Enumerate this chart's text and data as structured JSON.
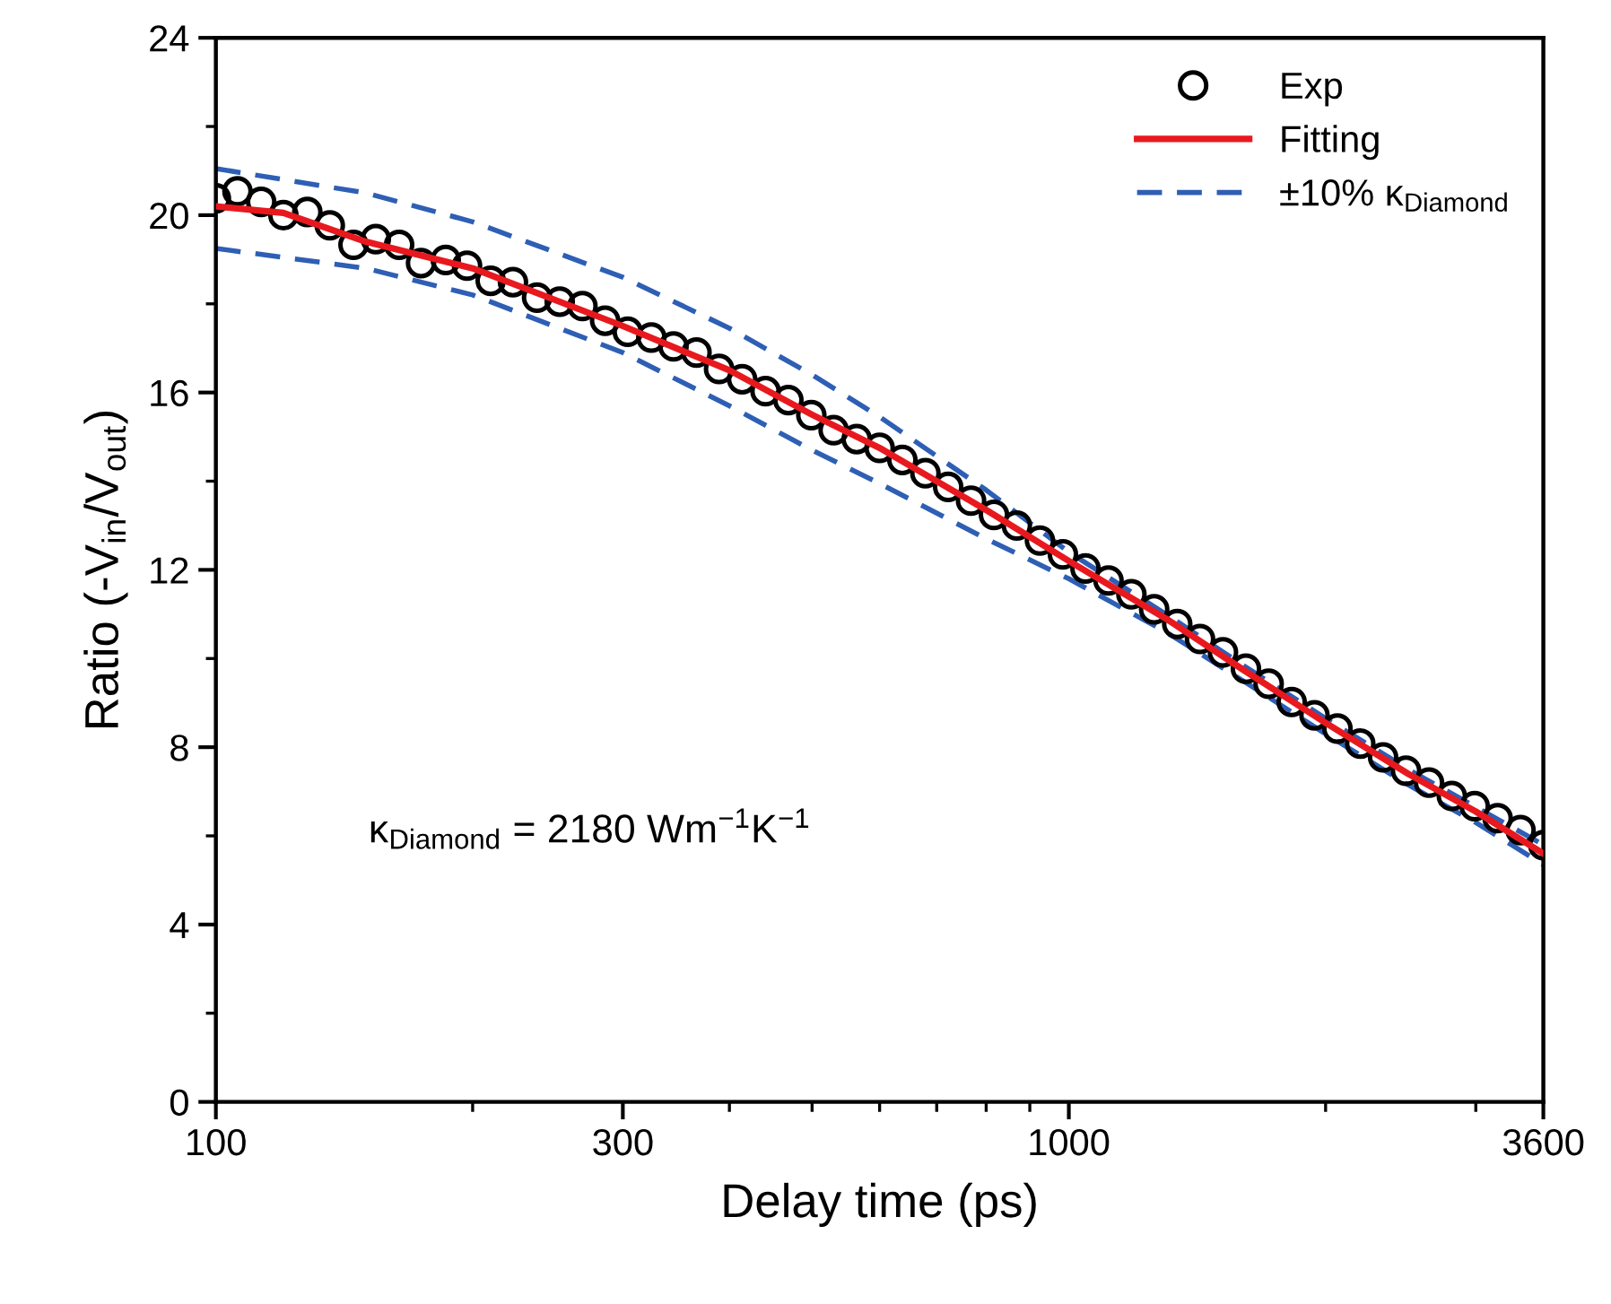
{
  "chart_data": {
    "type": "scatter",
    "xlabel": "Delay time (ps)",
    "ylabel": "Ratio (-V$_{in}$/V$_{out}$)",
    "log": "x",
    "xlim": [
      100,
      3600
    ],
    "xticks": [
      100,
      300,
      1000,
      3600
    ],
    "ylim": [
      0,
      24
    ],
    "yticks": [
      0,
      4,
      8,
      12,
      16,
      20,
      24
    ],
    "grid": false,
    "legend": "top right",
    "annotations": [
      "κ$_{Diamond}$ = 2180 Wm$^{−1}$K$^{−1}$"
    ],
    "series": [
      {
        "name": "Exp",
        "marker": "circle",
        "color": "#000000",
        "x": [
          100,
          106,
          113,
          120,
          128,
          136,
          145,
          154,
          164,
          174,
          186,
          197,
          210,
          223,
          238,
          253,
          269,
          286,
          304,
          324,
          344,
          366,
          389,
          414,
          441,
          469,
          499,
          530,
          564,
          600,
          638,
          679,
          722,
          768,
          817,
          869,
          925,
          984,
          1046,
          1113,
          1184,
          1259,
          1340,
          1425,
          1516,
          1613,
          1715,
          1825,
          1941,
          2065,
          2196,
          2336,
          2485,
          2644,
          2812,
          2991,
          3182,
          3385,
          3600
        ],
        "values": [
          20.38,
          20.54,
          20.3,
          20.0,
          20.07,
          19.77,
          19.33,
          19.46,
          19.33,
          18.92,
          18.99,
          18.86,
          18.52,
          18.49,
          18.14,
          18.05,
          17.95,
          17.62,
          17.37,
          17.24,
          17.04,
          16.9,
          16.53,
          16.3,
          16.03,
          15.83,
          15.49,
          15.15,
          14.95,
          14.75,
          14.48,
          14.18,
          13.87,
          13.56,
          13.24,
          13.0,
          12.66,
          12.35,
          12.03,
          11.76,
          11.45,
          11.11,
          10.78,
          10.44,
          10.14,
          9.77,
          9.43,
          9.02,
          8.72,
          8.42,
          8.08,
          7.77,
          7.47,
          7.2,
          6.9,
          6.67,
          6.4,
          6.13,
          5.79
        ]
      },
      {
        "name": "Fitting",
        "type": "line",
        "line_style": "solid",
        "color": "#e8191e",
        "x": [
          100,
          120,
          150,
          200,
          300,
          400,
          500,
          600,
          800,
          1000,
          1300,
          1600,
          2000,
          2500,
          3000,
          3600
        ],
        "values": [
          20.2,
          20.05,
          19.4,
          18.8,
          17.5,
          16.5,
          15.5,
          14.75,
          13.35,
          12.2,
          10.9,
          9.75,
          8.55,
          7.4,
          6.55,
          5.6
        ]
      },
      {
        "name": "±10% κ$_{Diamond}$",
        "type": "line",
        "line_style": "dashed",
        "color": "#2e5fb5",
        "x": [
          100,
          150,
          200,
          300,
          400,
          500,
          600,
          800,
          1000,
          1300,
          1600,
          2000,
          2500,
          3000,
          3600
        ],
        "values": [
          21.05,
          20.5,
          19.85,
          18.6,
          17.45,
          16.4,
          15.45,
          13.8,
          12.4,
          11.0,
          9.85,
          8.65,
          7.5,
          6.65,
          5.8
        ]
      },
      {
        "type": "line",
        "line_style": "dashed",
        "color": "#2e5fb5",
        "x": [
          100,
          150,
          200,
          300,
          400,
          500,
          600,
          800,
          1000,
          1300,
          1600,
          2000,
          2500,
          3000,
          3600
        ],
        "values": [
          19.25,
          18.8,
          18.2,
          16.9,
          15.7,
          14.7,
          13.95,
          12.7,
          11.8,
          10.6,
          9.5,
          8.3,
          7.15,
          6.3,
          5.35
        ]
      }
    ]
  }
}
